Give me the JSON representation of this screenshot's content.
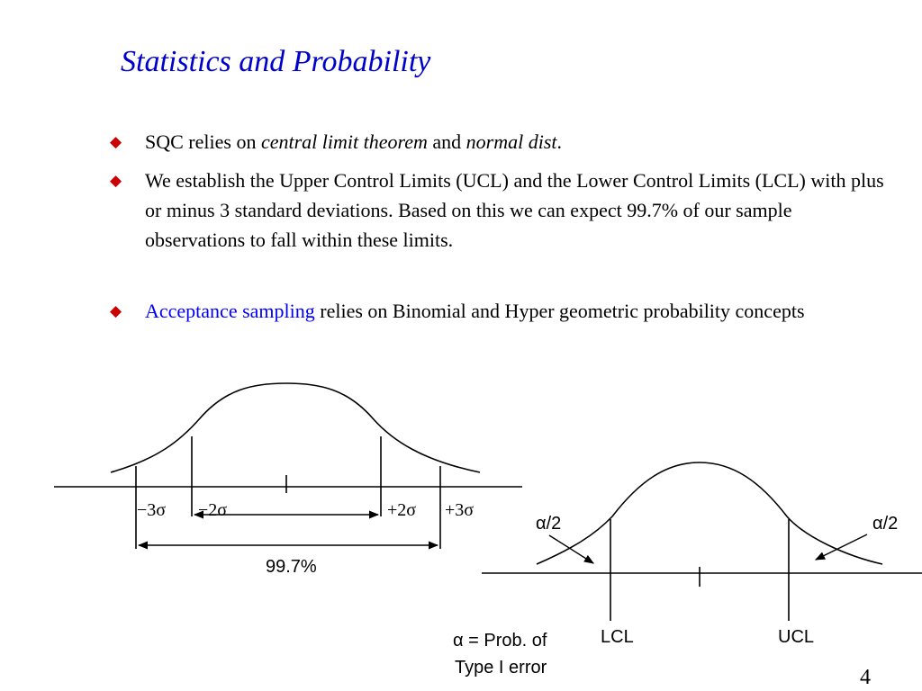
{
  "slide": {
    "title": "Statistics and Probability",
    "page_number": "4"
  },
  "bullets": [
    {
      "marker": "◆",
      "pre": "SQC relies on ",
      "em1": "central limit theorem",
      "mid": " and ",
      "em2": "normal dist",
      "post": "."
    },
    {
      "marker": "◆",
      "text": "We establish the Upper Control Limits (UCL) and the Lower Control Limits (LCL) with plus or minus 3 standard deviations. Based on this we can expect 99.7% of our sample observations to fall within these limits."
    },
    {
      "marker": "◆",
      "link": "Acceptance sampling",
      "rest": " relies on Binomial and Hyper geometric probability concepts"
    }
  ],
  "left_diagram": {
    "labels": {
      "minus3": "−3σ",
      "minus2": "−2σ",
      "plus2": "+2σ",
      "plus3": "+3σ",
      "range": "99.7%"
    }
  },
  "right_diagram": {
    "labels": {
      "alpha_left": "α/2",
      "alpha_right": "α/2",
      "lcl": "LCL",
      "ucl": "UCL",
      "error_line1": "α = Prob. of",
      "error_line2": "Type I error"
    }
  },
  "colors": {
    "title": "#0000cc",
    "bullet_marker": "#cc0000",
    "link": "#0000ff"
  }
}
